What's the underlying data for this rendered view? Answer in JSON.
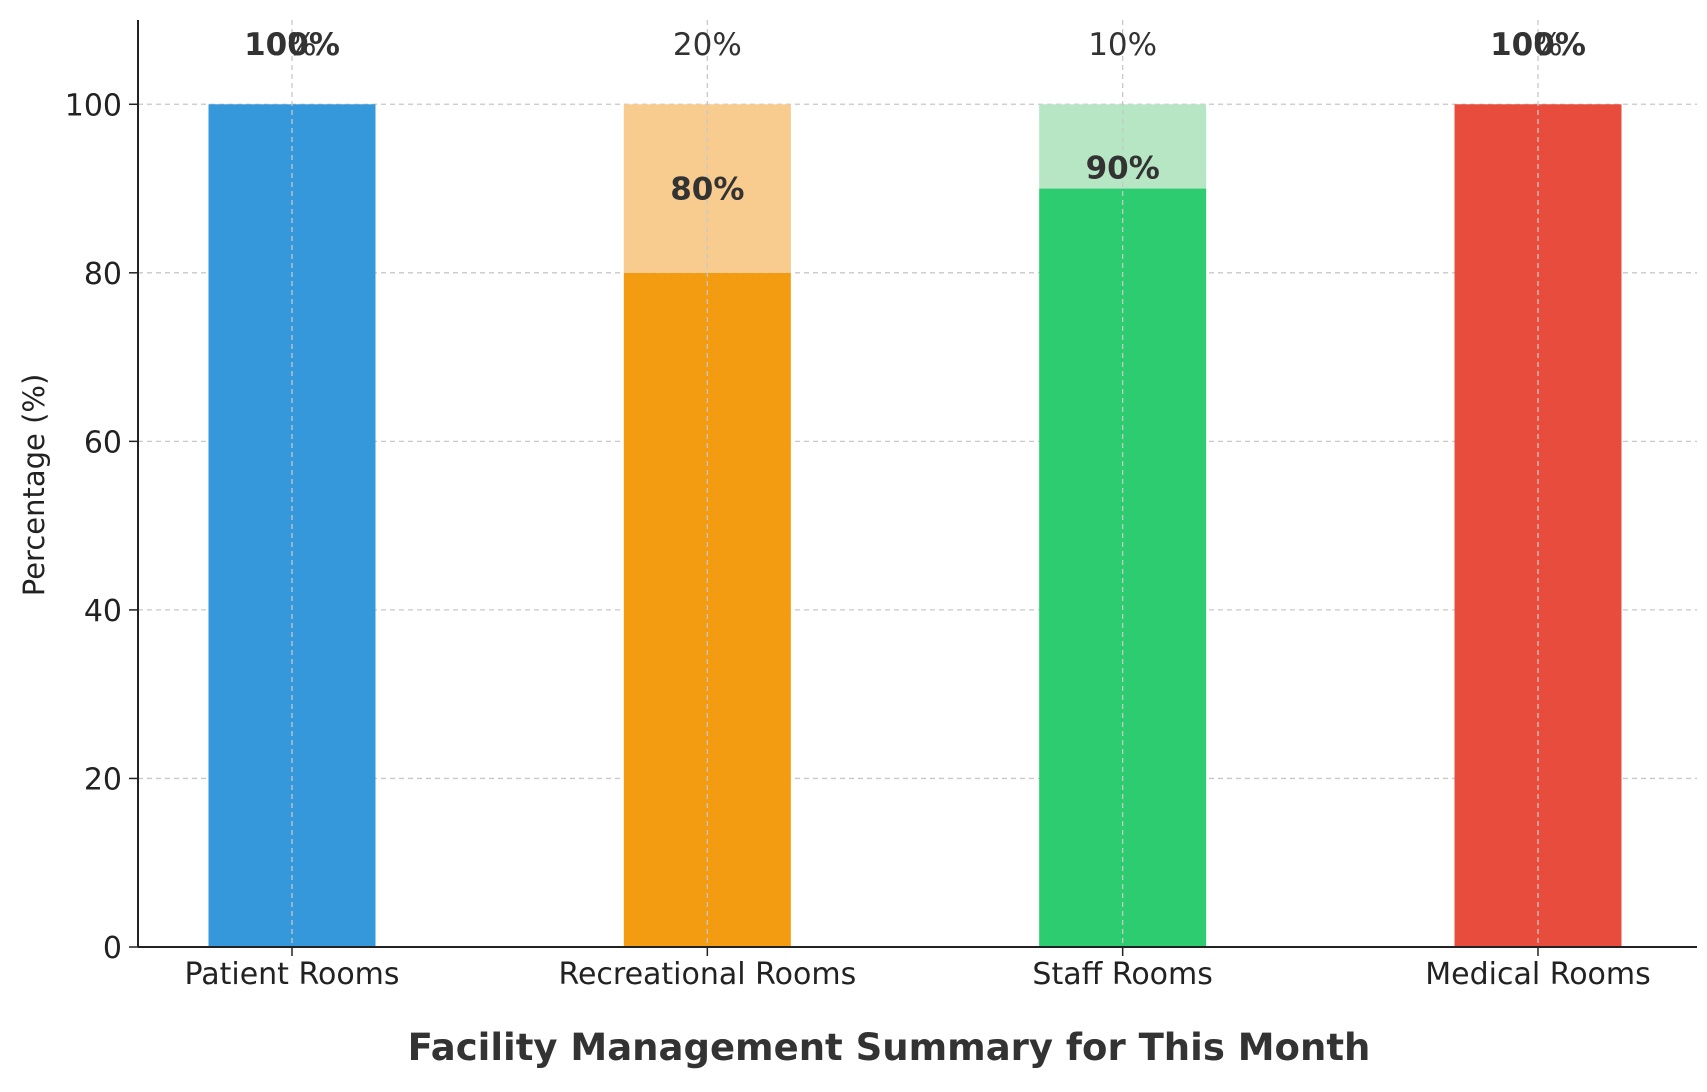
{
  "chart_data": {
    "type": "bar",
    "stacked": true,
    "categories": [
      "Patient Rooms",
      "Recreational Rooms",
      "Staff Rooms",
      "Medical Rooms"
    ],
    "series": [
      {
        "values": [
          100,
          80,
          90,
          100
        ],
        "labels": [
          "100%",
          "80%",
          "90%",
          "100%"
        ],
        "colors": [
          "#3498db",
          "#f39c12",
          "#2ecc71",
          "#e74c3c"
        ]
      },
      {
        "values": [
          0,
          20,
          10,
          0
        ],
        "labels": [
          "0%",
          "20%",
          "10%",
          "0%"
        ],
        "colors": [
          "#aed6f1",
          "#f8cb8f",
          "#b7e6c5",
          "#f5b7b1"
        ]
      }
    ],
    "xlabel": "Facility Management Summary for This Month",
    "ylabel": "Percentage (%)",
    "yticks": [
      0,
      20,
      40,
      60,
      80,
      100
    ],
    "ylim": [
      0,
      110
    ],
    "grid": true
  }
}
